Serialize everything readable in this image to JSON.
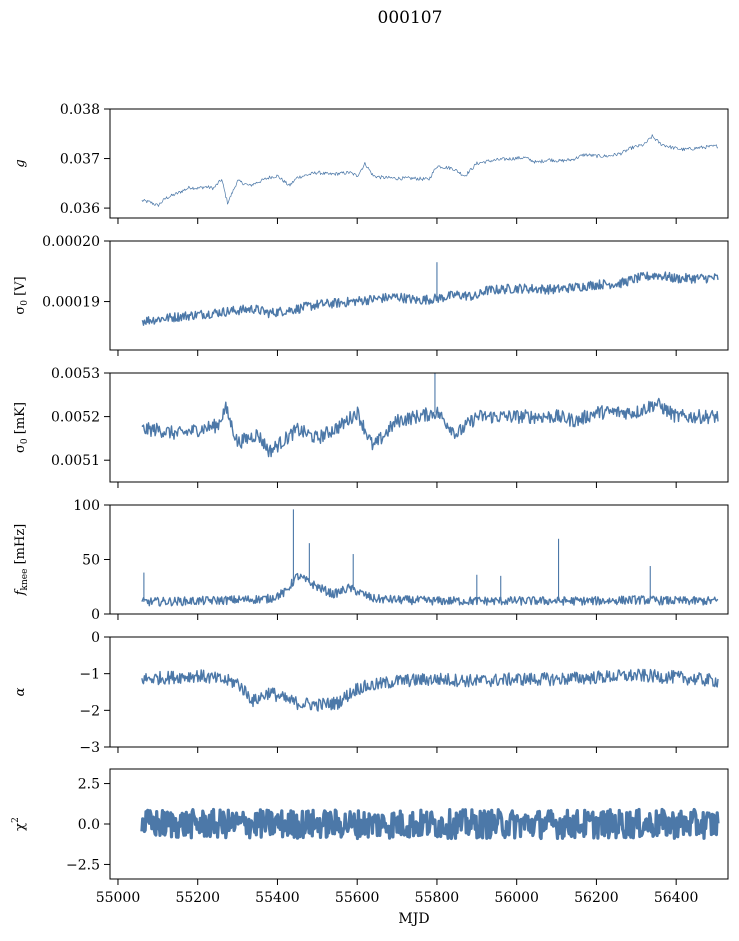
{
  "figure": {
    "title": "000107",
    "color": "#4c78a8"
  },
  "chart_data": [
    {
      "type": "line",
      "ylabel_tex": "g",
      "ylim": [
        0.0358,
        0.038
      ],
      "yticks": [
        0.036,
        0.037,
        0.038
      ],
      "ytick_labels": [
        "0.036",
        "0.037",
        "0.038"
      ],
      "xlim": [
        54980,
        56530
      ],
      "data_xrange": [
        55060,
        56505
      ],
      "series": [
        {
          "x": [
            55060,
            55080,
            55100,
            55120,
            55150,
            55180,
            55200,
            55220,
            55240,
            55260,
            55275,
            55300,
            55330,
            55350,
            55380,
            55400,
            55430,
            55450,
            55480,
            55500,
            55530,
            55560,
            55580,
            55600,
            55620,
            55640,
            55660,
            55700,
            55740,
            55780,
            55800,
            55840,
            55870,
            55900,
            55930,
            55960,
            55990,
            56020,
            56050,
            56080,
            56110,
            56140,
            56170,
            56200,
            56230,
            56260,
            56290,
            56320,
            56340,
            56360,
            56390,
            56420,
            56460,
            56500
          ],
          "y": [
            0.03615,
            0.03612,
            0.03605,
            0.0362,
            0.0363,
            0.03642,
            0.0364,
            0.03643,
            0.0364,
            0.03658,
            0.0361,
            0.03655,
            0.03645,
            0.03652,
            0.03662,
            0.03665,
            0.03645,
            0.03662,
            0.03668,
            0.03672,
            0.03668,
            0.0367,
            0.03672,
            0.03665,
            0.0369,
            0.03665,
            0.03662,
            0.0366,
            0.0366,
            0.03658,
            0.03685,
            0.0368,
            0.03665,
            0.0369,
            0.03695,
            0.03698,
            0.037,
            0.03702,
            0.03692,
            0.03698,
            0.03695,
            0.03698,
            0.03708,
            0.03705,
            0.03705,
            0.0371,
            0.03722,
            0.03728,
            0.03745,
            0.0373,
            0.03722,
            0.03718,
            0.03722,
            0.03725
          ],
          "noise": 6e-05
        }
      ]
    },
    {
      "type": "line",
      "ylabel_tex": "σ0 [V]",
      "ylim": [
        0.000182,
        0.0002
      ],
      "yticks": [
        0.00019,
        0.0002
      ],
      "ytick_labels": [
        "0.00019",
        "0.00020"
      ],
      "xlim": [
        54980,
        56530
      ],
      "data_xrange": [
        55060,
        56505
      ],
      "series": [
        {
          "x": [
            55060,
            55150,
            55250,
            55340,
            55380,
            55450,
            55500,
            55560,
            55600,
            55700,
            55750,
            55800,
            55850,
            55900,
            55920,
            56000,
            56100,
            56200,
            56260,
            56300,
            56350,
            56400,
            56505
          ],
          "y": [
            0.0001868,
            0.0001875,
            0.0001882,
            0.0001888,
            0.0001881,
            0.0001888,
            0.0001895,
            0.0001898,
            0.0001901,
            0.0001908,
            0.0001902,
            0.0001905,
            0.0001911,
            0.0001908,
            0.0001918,
            0.0001922,
            0.000192,
            0.0001928,
            0.000193,
            0.0001938,
            0.0001944,
            0.0001938,
            0.0001939
          ],
          "noise": 8e-07
        }
      ],
      "spikes": [
        {
          "x": 55800,
          "y": 0.0001965
        }
      ]
    },
    {
      "type": "line",
      "ylabel_tex": "σ0 [mK]",
      "ylim": [
        0.00505,
        0.0053
      ],
      "yticks": [
        0.0051,
        0.0052,
        0.0053
      ],
      "ytick_labels": [
        "0.0051",
        "0.0052",
        "0.0053"
      ],
      "xlim": [
        54980,
        56530
      ],
      "data_xrange": [
        55060,
        56505
      ],
      "series": [
        {
          "x": [
            55060,
            55100,
            55150,
            55200,
            55250,
            55270,
            55300,
            55350,
            55380,
            55450,
            55500,
            55560,
            55600,
            55640,
            55700,
            55800,
            55850,
            55900,
            56000,
            56100,
            56150,
            56200,
            56300,
            56350,
            56400,
            56505
          ],
          "y": [
            0.00517,
            0.00517,
            0.00516,
            0.00517,
            0.00518,
            0.00522,
            0.00514,
            0.00516,
            0.00512,
            0.00517,
            0.00515,
            0.00518,
            0.00521,
            0.00513,
            0.00519,
            0.00521,
            0.00516,
            0.0052,
            0.0052,
            0.0052,
            0.00519,
            0.00521,
            0.00521,
            0.00523,
            0.0052,
            0.0052
          ],
          "noise": 1.6e-05
        }
      ],
      "spikes": [
        {
          "x": 55795,
          "y": 0.0053
        }
      ]
    },
    {
      "type": "line",
      "ylabel_tex": "fknee [mHz]",
      "ylim": [
        0,
        100
      ],
      "yticks": [
        0,
        50,
        100
      ],
      "ytick_labels": [
        "0",
        "50",
        "100"
      ],
      "xlim": [
        54980,
        56530
      ],
      "data_xrange": [
        55060,
        56505
      ],
      "series": [
        {
          "x": [
            55060,
            55200,
            55300,
            55380,
            55420,
            55450,
            55500,
            55540,
            55580,
            55640,
            55700,
            55800,
            55900,
            56000,
            56100,
            56200,
            56300,
            56400,
            56505
          ],
          "y": [
            11,
            12,
            13,
            14,
            20,
            35,
            25,
            18,
            24,
            14,
            13,
            12,
            12,
            12,
            12,
            12,
            13,
            12,
            12
          ],
          "noise": 4
        }
      ],
      "spikes": [
        {
          "x": 55065,
          "y": 38
        },
        {
          "x": 55440,
          "y": 96
        },
        {
          "x": 55480,
          "y": 65
        },
        {
          "x": 55590,
          "y": 55
        },
        {
          "x": 55900,
          "y": 36
        },
        {
          "x": 55960,
          "y": 35
        },
        {
          "x": 56105,
          "y": 69
        },
        {
          "x": 56335,
          "y": 44
        }
      ]
    },
    {
      "type": "line",
      "ylabel_tex": "α",
      "ylim": [
        -3,
        0
      ],
      "yticks": [
        -3,
        -2,
        -1,
        0
      ],
      "ytick_labels": [
        "−3",
        "−2",
        "−1",
        "0"
      ],
      "xlim": [
        54980,
        56530
      ],
      "data_xrange": [
        55060,
        56505
      ],
      "series": [
        {
          "x": [
            55060,
            55200,
            55300,
            55340,
            55380,
            55420,
            55450,
            55500,
            55550,
            55600,
            55650,
            55700,
            55800,
            55900,
            56000,
            56100,
            56200,
            56300,
            56400,
            56505
          ],
          "y": [
            -1.15,
            -1.05,
            -1.25,
            -1.75,
            -1.5,
            -1.7,
            -1.8,
            -1.85,
            -1.8,
            -1.4,
            -1.3,
            -1.2,
            -1.15,
            -1.2,
            -1.15,
            -1.15,
            -1.1,
            -1.05,
            -1.1,
            -1.2
          ],
          "noise": 0.18
        }
      ]
    },
    {
      "type": "line",
      "ylabel_tex": "χ2",
      "ylim": [
        -3.4,
        3.4
      ],
      "yticks": [
        -2.5,
        0,
        2.5
      ],
      "ytick_labels": [
        "−2.5",
        "0.0",
        "2.5"
      ],
      "xlim": [
        54980,
        56530
      ],
      "data_xrange": [
        55060,
        56505
      ],
      "xlabel": "MJD",
      "xticks": [
        55000,
        55200,
        55400,
        55600,
        55800,
        56000,
        56200,
        56400
      ],
      "xtick_labels": [
        "55000",
        "55200",
        "55400",
        "55600",
        "55800",
        "56000",
        "56200",
        "56400"
      ],
      "series": [
        {
          "x": [
            55060,
            56505
          ],
          "y": [
            0,
            0
          ],
          "noise": 0.9
        }
      ]
    }
  ]
}
